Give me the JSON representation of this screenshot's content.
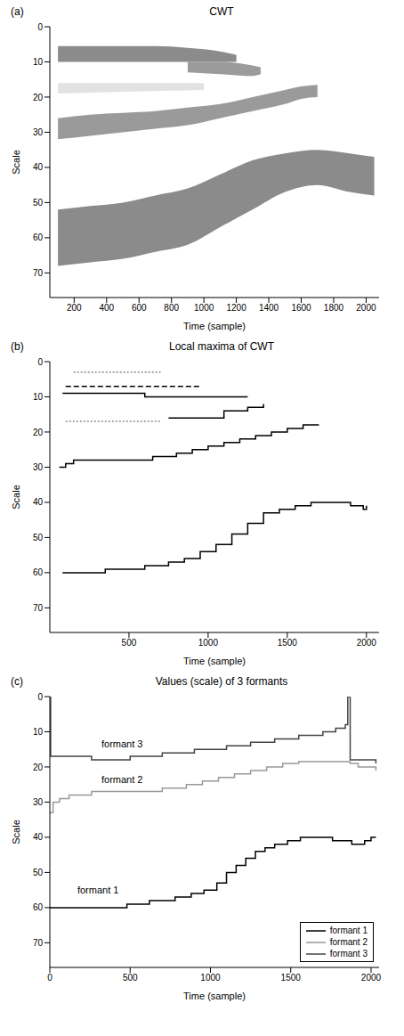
{
  "chart_data": [
    {
      "type": "area",
      "panel_label": "(a)",
      "title": "CWT",
      "x_label": "Time (sample)",
      "y_label": "Scale",
      "xlim": [
        50,
        2080
      ],
      "xticks": [
        200,
        400,
        600,
        800,
        1000,
        1200,
        1400,
        1600,
        1800,
        2000
      ],
      "ylim": [
        0,
        77
      ],
      "yticks": [
        0,
        10,
        20,
        30,
        40,
        50,
        60,
        70
      ],
      "grid": false,
      "series": [
        {
          "color": "#777777",
          "x": [
            100,
            300,
            500,
            700,
            900,
            1100,
            1200
          ],
          "low": [
            5.5,
            5.5,
            5.5,
            5.5,
            6,
            7,
            8
          ],
          "high": [
            10,
            10,
            10,
            10,
            10,
            10,
            10
          ]
        },
        {
          "color": "#8a8a8a",
          "x": [
            900,
            1100,
            1300,
            1350
          ],
          "low": [
            10,
            10,
            11,
            11.5
          ],
          "high": [
            13,
            13.5,
            14,
            13.5
          ]
        },
        {
          "color": "#dddddd",
          "x": [
            100,
            500,
            1000
          ],
          "low": [
            16,
            16,
            16
          ],
          "high": [
            19,
            18.5,
            18
          ]
        },
        {
          "color": "#888888",
          "x": [
            100,
            300,
            500,
            700,
            900,
            1100,
            1300,
            1500,
            1600,
            1700
          ],
          "low": [
            26,
            25,
            24.5,
            24,
            23,
            22,
            20,
            18,
            17,
            16.5
          ],
          "high": [
            32,
            31,
            30,
            29,
            28,
            26,
            24,
            22,
            20.5,
            20
          ]
        },
        {
          "color": "#777777",
          "x": [
            100,
            300,
            500,
            700,
            900,
            1100,
            1300,
            1500,
            1700,
            1900,
            2050
          ],
          "low": [
            52,
            51,
            50,
            48,
            46,
            42,
            38,
            36,
            35,
            36,
            37
          ],
          "high": [
            68,
            67,
            66,
            64,
            62,
            57,
            52,
            47,
            45,
            47,
            48
          ]
        }
      ]
    },
    {
      "type": "line",
      "panel_label": "(b)",
      "title": "Local maxima of CWT",
      "x_label": "Time (sample)",
      "y_label": "Scale",
      "xlim": [
        0,
        2080
      ],
      "xticks": [
        500,
        1000,
        1500,
        2000
      ],
      "ylim": [
        0,
        77
      ],
      "yticks": [
        0,
        10,
        20,
        30,
        40,
        50,
        60,
        70
      ],
      "grid": false,
      "series": [
        {
          "color": "#000000",
          "line_style": "solid",
          "x": [
            80,
            350,
            600,
            750,
            850,
            950,
            1050,
            1150,
            1250,
            1350,
            1450,
            1550,
            1650,
            1800,
            1900,
            1980,
            2000
          ],
          "values": [
            60,
            59,
            58,
            57,
            56,
            54,
            52,
            49,
            46,
            43,
            42,
            41,
            40,
            40,
            41,
            42,
            41
          ]
        },
        {
          "color": "#000000",
          "line_style": "solid",
          "x": [
            60,
            100,
            150,
            500,
            650,
            800,
            900,
            1000,
            1100,
            1200,
            1300,
            1400,
            1500,
            1600,
            1700
          ],
          "values": [
            30,
            29,
            28,
            28,
            27,
            26,
            25,
            24,
            23,
            22,
            21,
            20,
            19,
            18,
            18
          ]
        },
        {
          "color": "#888888",
          "line_style": "dotted",
          "x": [
            100,
            400,
            700
          ],
          "values": [
            17,
            17,
            17
          ]
        },
        {
          "color": "#000000",
          "line_style": "solid",
          "x": [
            750,
            1000,
            1100,
            1250,
            1350
          ],
          "values": [
            16,
            16,
            14,
            13,
            12
          ]
        },
        {
          "color": "#000000",
          "line_style": "solid",
          "x": [
            80,
            600,
            1000,
            1250
          ],
          "values": [
            9,
            10,
            10,
            10
          ]
        },
        {
          "color": "#000000",
          "line_style": "dashed",
          "x": [
            100,
            950
          ],
          "values": [
            7,
            7
          ]
        },
        {
          "color": "#888888",
          "line_style": "dotted",
          "x": [
            150,
            700
          ],
          "values": [
            3,
            3
          ]
        }
      ]
    },
    {
      "type": "line",
      "panel_label": "(c)",
      "title": "Values (scale) of 3 formants",
      "x_label": "Time (sample)",
      "y_label": "Scale",
      "xlim": [
        0,
        2050
      ],
      "xticks": [
        0,
        500,
        1000,
        1500,
        2000
      ],
      "ylim": [
        0,
        77
      ],
      "yticks": [
        0,
        10,
        20,
        30,
        40,
        50,
        60,
        70
      ],
      "grid": false,
      "legend": "lower right",
      "series": [
        {
          "name": "formant 1",
          "color": "#000000",
          "line_style": "solid",
          "x": [
            0,
            480,
            620,
            780,
            880,
            960,
            1040,
            1100,
            1160,
            1220,
            1280,
            1340,
            1400,
            1480,
            1560,
            1760,
            1880,
            1960,
            2000,
            2030
          ],
          "values": [
            60,
            59,
            58,
            57,
            56,
            55,
            53,
            50,
            48,
            46,
            44,
            43,
            42,
            41,
            40,
            41,
            42,
            41,
            40,
            40
          ]
        },
        {
          "name": "formant 2",
          "color": "#999999",
          "line_style": "solid",
          "x": [
            0,
            20,
            60,
            120,
            260,
            600,
            700,
            850,
            950,
            1050,
            1150,
            1250,
            1350,
            1450,
            1550,
            1700,
            1870,
            1920,
            1980,
            2030
          ],
          "values": [
            33,
            30,
            29,
            28,
            27,
            27,
            26,
            25,
            24,
            23,
            22,
            21,
            20,
            19,
            18.5,
            18.5,
            19,
            20,
            20,
            21
          ]
        },
        {
          "name": "formant 3",
          "color": "#444444",
          "line_style": "solid",
          "x": [
            0,
            5,
            220,
            260,
            500,
            700,
            900,
            1100,
            1250,
            1400,
            1550,
            1700,
            1780,
            1840,
            1855,
            1870,
            2030
          ],
          "values": [
            0,
            17,
            17,
            18,
            17,
            16,
            15,
            14,
            13,
            12,
            11,
            10,
            9,
            8,
            0,
            18,
            19
          ]
        }
      ],
      "annotations": [
        {
          "text": "formant 3",
          "x": 450,
          "y": 13.5
        },
        {
          "text": "formant 2",
          "x": 450,
          "y": 23.5
        },
        {
          "text": "formant 1",
          "x": 300,
          "y": 55
        }
      ]
    }
  ]
}
